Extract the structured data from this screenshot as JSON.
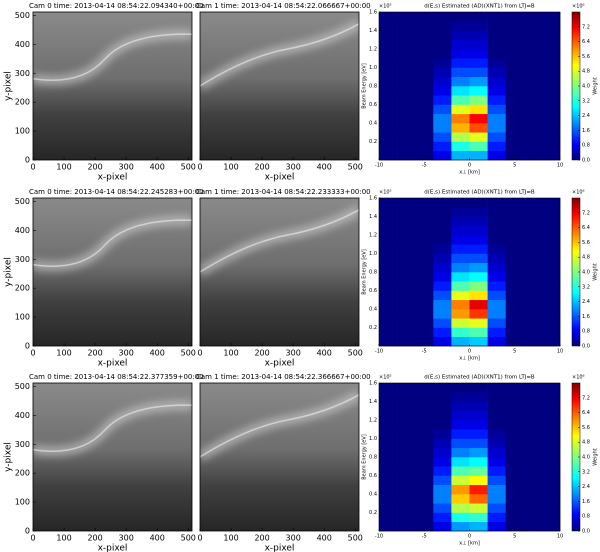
{
  "chart_data": [
    {
      "type": "image",
      "title": "Cam 0  time: 2013-04-14 08:54:22.094340+00:00",
      "xlabel": "x-pixel",
      "ylabel": "y-pixel",
      "xlim": [
        0,
        512
      ],
      "ylim": [
        0,
        512
      ],
      "xticks": [
        0,
        100,
        200,
        300,
        400,
        500
      ],
      "yticks": [
        0,
        100,
        200,
        300,
        400,
        500
      ]
    },
    {
      "type": "image",
      "title": "Cam 1  time: 2013-04-14 08:54:22.066667+00:00",
      "xlabel": "x-pixel",
      "xlim": [
        0,
        512
      ],
      "ylim": [
        0,
        512
      ],
      "xticks": [
        0,
        100,
        200,
        300,
        400,
        500
      ]
    },
    {
      "type": "heatmap",
      "title": "d(E,s)  Estimated (AD)(XNT1) from LTJ=B",
      "xlabel": "x⊥ [km]",
      "ylabel": "Beam Energy [eV]",
      "y_offset": "×10⁵",
      "colorbar_label": "Weight",
      "colorbar_offset": "×10⁶",
      "xlim": [
        -10,
        10
      ],
      "ylim": [
        0,
        1.6
      ],
      "xticks": [
        -10,
        -5,
        0,
        5,
        10
      ],
      "yticks": [
        0.2,
        0.4,
        0.6,
        0.8,
        {
          "value": 1,
          "label": "1.0"
        },
        1.2,
        1.4,
        1.6
      ],
      "clim": [
        0,
        8
      ],
      "cticks": [
        {
          "value": 0,
          "label": "0.0"
        },
        0.8,
        1.6,
        2.4,
        3.2,
        {
          "value": 4,
          "label": "4.0"
        },
        4.8,
        5.6,
        6.4,
        7.2
      ],
      "xbins": [
        -10,
        -8,
        -6,
        -4,
        -2,
        0,
        2,
        4,
        6,
        8,
        10
      ],
      "ybins": [
        0,
        0.1,
        0.2,
        0.3,
        0.4,
        0.5,
        0.6,
        0.7,
        0.8,
        0.9,
        1.0,
        1.1,
        1.2,
        1.3,
        1.4,
        1.5,
        1.6
      ],
      "z": [
        [
          0,
          0,
          0,
          0.8,
          2.4,
          2.4,
          0.8,
          0,
          0,
          0
        ],
        [
          0,
          0,
          0,
          1.2,
          3.2,
          3.6,
          1.2,
          0,
          0,
          0
        ],
        [
          0,
          0,
          0,
          1.6,
          4.4,
          4.8,
          1.6,
          0,
          0,
          0
        ],
        [
          0,
          0,
          0,
          2,
          5.6,
          6.4,
          2,
          0,
          0,
          0
        ],
        [
          0,
          0,
          0,
          2,
          6,
          7,
          2,
          0,
          0,
          0
        ],
        [
          0,
          0,
          0,
          1.6,
          4.8,
          5.2,
          1.6,
          0,
          0,
          0
        ],
        [
          0,
          0,
          0,
          1.2,
          3.6,
          4,
          1.2,
          0,
          0,
          0
        ],
        [
          0,
          0,
          0,
          0.8,
          2.8,
          3,
          0.8,
          0,
          0,
          0
        ],
        [
          0,
          0,
          0,
          0.6,
          2,
          2.2,
          0.6,
          0,
          0,
          0
        ],
        [
          0,
          0,
          0,
          0.4,
          1.6,
          1.6,
          0.4,
          0,
          0,
          0
        ],
        [
          0,
          0,
          0,
          0.2,
          1.2,
          1.2,
          0.2,
          0,
          0,
          0
        ],
        [
          0,
          0,
          0,
          0,
          0.8,
          0.8,
          0,
          0,
          0,
          0
        ],
        [
          0,
          0,
          0,
          0,
          0.6,
          0.6,
          0,
          0,
          0,
          0
        ],
        [
          0,
          0,
          0,
          0,
          0.4,
          0.4,
          0,
          0,
          0,
          0
        ],
        [
          0,
          0,
          0,
          0,
          0.2,
          0.2,
          0,
          0,
          0,
          0
        ],
        [
          0,
          0,
          0,
          0,
          0,
          0,
          0,
          0,
          0,
          0
        ]
      ]
    },
    {
      "type": "image",
      "title": "Cam 0  time: 2013-04-14 08:54:22.245283+00:00",
      "xlabel": "x-pixel",
      "ylabel": "y-pixel",
      "xlim": [
        0,
        512
      ],
      "ylim": [
        0,
        512
      ],
      "xticks": [
        0,
        100,
        200,
        300,
        400,
        500
      ],
      "yticks": [
        0,
        100,
        200,
        300,
        400,
        500
      ]
    },
    {
      "type": "image",
      "title": "Cam 1  time: 2013-04-14 08:54:22.233333+00:00",
      "xlabel": "x-pixel",
      "xlim": [
        0,
        512
      ],
      "ylim": [
        0,
        512
      ],
      "xticks": [
        0,
        100,
        200,
        300,
        400,
        500
      ]
    },
    {
      "type": "heatmap",
      "title": "d(E,s)  Estimated (AD)(XNT1) from LTJ=B",
      "xlabel": "x⊥ [km]",
      "ylabel": "Beam Energy [eV]",
      "y_offset": "×10⁵",
      "colorbar_label": "Weight",
      "colorbar_offset": "×10⁶",
      "xlim": [
        -10,
        10
      ],
      "ylim": [
        0,
        1.6
      ],
      "xticks": [
        -10,
        -5,
        0,
        5,
        10
      ],
      "yticks": [
        0.2,
        0.4,
        0.6,
        0.8,
        {
          "value": 1,
          "label": "1.0"
        },
        1.2,
        1.4,
        1.6
      ],
      "clim": [
        0,
        8
      ],
      "cticks": [
        {
          "value": 0,
          "label": "0.0"
        },
        0.8,
        1.6,
        2.4,
        3.2,
        {
          "value": 4,
          "label": "4.0"
        },
        4.8,
        5.6,
        6.4,
        7.2
      ],
      "xbins": [
        -10,
        -8,
        -6,
        -4,
        -2,
        0,
        2,
        4,
        6,
        8,
        10
      ],
      "ybins": [
        0,
        0.1,
        0.2,
        0.3,
        0.4,
        0.5,
        0.6,
        0.7,
        0.8,
        0.9,
        1.0,
        1.1,
        1.2,
        1.3,
        1.4,
        1.5,
        1.6
      ],
      "z": [
        [
          0,
          0,
          0,
          0.8,
          2.4,
          2.6,
          0.8,
          0,
          0,
          0
        ],
        [
          0,
          0,
          0,
          1.2,
          3.4,
          3.6,
          1.2,
          0,
          0,
          0
        ],
        [
          0,
          0,
          0,
          1.6,
          4.6,
          4.8,
          1.6,
          0,
          0,
          0
        ],
        [
          0,
          0,
          0,
          2,
          5.8,
          6.6,
          2,
          0,
          0,
          0
        ],
        [
          0,
          0,
          0,
          2,
          6,
          7.2,
          2,
          0,
          0,
          0
        ],
        [
          0,
          0,
          0,
          1.6,
          4.8,
          5.2,
          1.6,
          0,
          0,
          0
        ],
        [
          0,
          0,
          0,
          1.2,
          3.6,
          4,
          1.2,
          0,
          0,
          0
        ],
        [
          0,
          0,
          0,
          0.8,
          2.8,
          3,
          0.8,
          0,
          0,
          0
        ],
        [
          0,
          0,
          0,
          0.6,
          2,
          2.2,
          0.6,
          0,
          0,
          0
        ],
        [
          0,
          0,
          0,
          0.4,
          1.6,
          1.6,
          0.4,
          0,
          0,
          0
        ],
        [
          0,
          0,
          0,
          0.2,
          1.2,
          1.2,
          0.2,
          0,
          0,
          0
        ],
        [
          0,
          0,
          0,
          0,
          0.8,
          0.8,
          0,
          0,
          0,
          0
        ],
        [
          0,
          0,
          0,
          0,
          0.6,
          0.6,
          0,
          0,
          0,
          0
        ],
        [
          0,
          0,
          0,
          0,
          0.4,
          0.4,
          0,
          0,
          0,
          0
        ],
        [
          0,
          0,
          0,
          0,
          0.2,
          0.2,
          0,
          0,
          0,
          0
        ],
        [
          0,
          0,
          0,
          0,
          0,
          0,
          0,
          0,
          0,
          0
        ]
      ]
    },
    {
      "type": "image",
      "title": "Cam 0  time: 2013-04-14 08:54:22.377359+00:00",
      "xlabel": "x-pixel",
      "ylabel": "y-pixel",
      "xlim": [
        0,
        512
      ],
      "ylim": [
        0,
        512
      ],
      "xticks": [
        0,
        100,
        200,
        300,
        400,
        500
      ],
      "yticks": [
        0,
        100,
        200,
        300,
        400,
        500
      ]
    },
    {
      "type": "image",
      "title": "Cam 1  time: 2013-04-14 08:54:22.366667+00:00",
      "xlabel": "x-pixel",
      "xlim": [
        0,
        512
      ],
      "ylim": [
        0,
        512
      ],
      "xticks": [
        0,
        100,
        200,
        300,
        400,
        500
      ]
    },
    {
      "type": "heatmap",
      "title": "d(E,s)  Estimated (AD)(XNT1) from LTJ=B",
      "xlabel": "x⊥ [km]",
      "ylabel": "Beam Energy [eV]",
      "y_offset": "×10⁵",
      "colorbar_label": "Weight",
      "colorbar_offset": "×10⁶",
      "xlim": [
        -10,
        10
      ],
      "ylim": [
        0,
        1.6
      ],
      "xticks": [
        -10,
        -5,
        0,
        5,
        10
      ],
      "yticks": [
        0.2,
        0.4,
        0.6,
        0.8,
        {
          "value": 1,
          "label": "1.0"
        },
        1.2,
        1.4,
        1.6
      ],
      "clim": [
        0,
        8
      ],
      "cticks": [
        {
          "value": 0,
          "label": "0.0"
        },
        0.8,
        1.6,
        2.4,
        3.2,
        {
          "value": 4,
          "label": "4.0"
        },
        4.8,
        5.6,
        6.4,
        7.2
      ],
      "xbins": [
        -10,
        -8,
        -6,
        -4,
        -2,
        0,
        2,
        4,
        6,
        8,
        10
      ],
      "ybins": [
        0,
        0.1,
        0.2,
        0.3,
        0.4,
        0.5,
        0.6,
        0.7,
        0.8,
        0.9,
        1.0,
        1.1,
        1.2,
        1.3,
        1.4,
        1.5,
        1.6
      ],
      "z": [
        [
          0,
          0,
          0,
          0.8,
          2.2,
          2.4,
          0.8,
          0,
          0,
          0
        ],
        [
          0,
          0,
          0,
          1.2,
          3.2,
          3.4,
          1.2,
          0,
          0,
          0
        ],
        [
          0,
          0,
          0,
          1.6,
          4.4,
          4.6,
          1.6,
          0,
          0,
          0
        ],
        [
          0,
          0,
          0,
          2,
          5.4,
          6.2,
          2,
          0,
          0,
          0
        ],
        [
          0,
          0,
          0,
          2,
          5.8,
          6.8,
          2,
          0,
          0,
          0
        ],
        [
          0,
          0,
          0,
          1.6,
          4.6,
          5,
          1.6,
          0,
          0,
          0
        ],
        [
          0,
          0,
          0,
          1.2,
          3.6,
          3.8,
          1.2,
          0,
          0,
          0
        ],
        [
          0,
          0,
          0,
          0.8,
          2.8,
          3,
          0.8,
          0,
          0,
          0
        ],
        [
          0,
          0,
          0,
          0.6,
          2,
          2.2,
          0.6,
          0,
          0,
          0
        ],
        [
          0,
          0,
          0,
          0.4,
          1.6,
          1.6,
          0.4,
          0,
          0,
          0
        ],
        [
          0,
          0,
          0,
          0.2,
          1.2,
          1.2,
          0.2,
          0,
          0,
          0
        ],
        [
          0,
          0,
          0,
          0,
          0.8,
          0.8,
          0,
          0,
          0,
          0
        ],
        [
          0,
          0,
          0,
          0,
          0.6,
          0.6,
          0,
          0,
          0,
          0
        ],
        [
          0,
          0,
          0,
          0,
          0.4,
          0.4,
          0,
          0,
          0,
          0
        ],
        [
          0,
          0,
          0,
          0,
          0.2,
          0.2,
          0,
          0,
          0,
          0
        ],
        [
          0,
          0,
          0,
          0,
          0,
          0,
          0,
          0,
          0,
          0
        ]
      ]
    }
  ]
}
